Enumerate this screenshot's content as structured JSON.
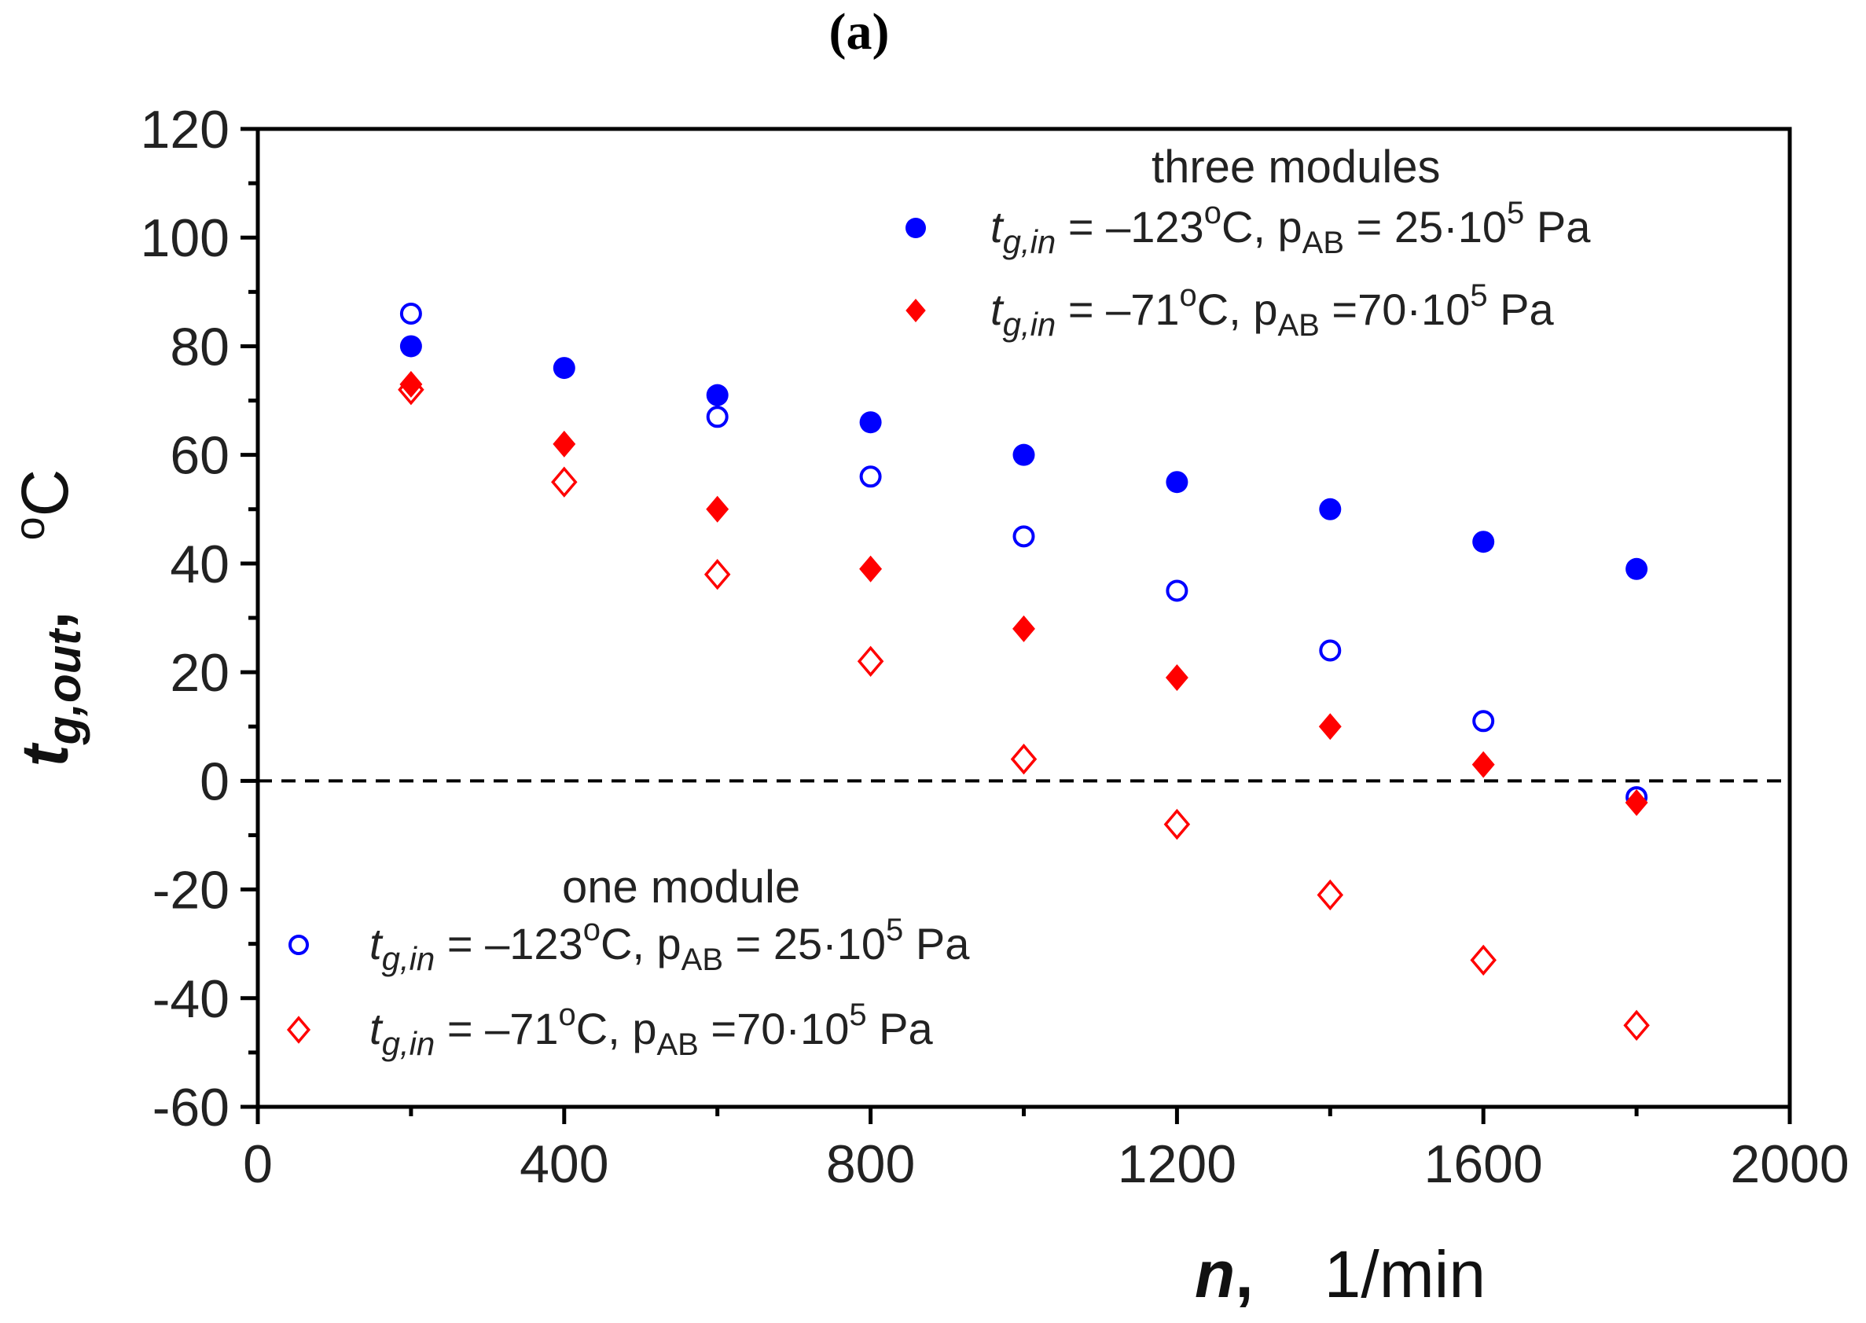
{
  "panel_label": "(a)",
  "chart_data": {
    "type": "scatter",
    "xlabel": {
      "symbol": "n",
      "sep": ",",
      "unit": "1/min"
    },
    "ylabel": {
      "symbol": "t",
      "subscript": "g,out",
      "sep": ",",
      "unit_sup": "o",
      "unit": "C"
    },
    "xlim": [
      0,
      2000
    ],
    "ylim": [
      -60,
      120
    ],
    "xticks": [
      0,
      400,
      800,
      1200,
      1600,
      2000
    ],
    "yticks": [
      -60,
      -40,
      -20,
      0,
      20,
      40,
      60,
      80,
      100,
      120
    ],
    "reference_line": {
      "y": 0,
      "style": "dashed"
    },
    "legend_groups": [
      {
        "title": "three modules",
        "placement": "top-right"
      },
      {
        "title": "one module",
        "placement": "bottom-left"
      }
    ],
    "series": [
      {
        "group": "three modules",
        "marker": "filled-circle",
        "color": "#0000ff",
        "label": {
          "var": "t",
          "var_sub": "g,in",
          "eq": " = –123",
          "deg": "o",
          "unit": "C, p",
          "p_sub": "AB",
          "rest": " = 25·10",
          "exp": "5",
          "tail": " Pa"
        },
        "x": [
          200,
          400,
          600,
          800,
          1000,
          1200,
          1400,
          1600,
          1800
        ],
        "y": [
          80,
          76,
          71,
          66,
          60,
          55,
          50,
          44,
          39
        ]
      },
      {
        "group": "three modules",
        "marker": "filled-diamond",
        "color": "#ff0000",
        "label": {
          "var": "t",
          "var_sub": "g,in",
          "eq": " = –71",
          "deg": "o",
          "unit": "C, p",
          "p_sub": "AB",
          "rest": " =70·10",
          "exp": "5",
          "tail": " Pa"
        },
        "x": [
          200,
          400,
          600,
          800,
          1000,
          1200,
          1400,
          1600,
          1800
        ],
        "y": [
          73,
          62,
          50,
          39,
          28,
          19,
          10,
          3,
          -4
        ]
      },
      {
        "group": "one module",
        "marker": "open-circle",
        "color": "#0000ff",
        "label": {
          "var": "t",
          "var_sub": "g,in",
          "eq": " = –123",
          "deg": "o",
          "unit": "C, p",
          "p_sub": "AB",
          "rest": " = 25·10",
          "exp": "5",
          "tail": " Pa"
        },
        "x": [
          200,
          600,
          800,
          1000,
          1200,
          1400,
          1600,
          1800
        ],
        "y": [
          86,
          67,
          56,
          45,
          35,
          24,
          11,
          -3
        ]
      },
      {
        "group": "one module",
        "marker": "open-diamond",
        "color": "#ff0000",
        "label": {
          "var": "t",
          "var_sub": "g,in",
          "eq": " = –71",
          "deg": "o",
          "unit": "C, p",
          "p_sub": "AB",
          "rest": " =70·10",
          "exp": "5",
          "tail": " Pa"
        },
        "x": [
          200,
          400,
          600,
          800,
          1000,
          1200,
          1400,
          1600,
          1800
        ],
        "y": [
          72,
          55,
          38,
          22,
          4,
          -8,
          -21,
          -33,
          -45
        ]
      }
    ]
  }
}
